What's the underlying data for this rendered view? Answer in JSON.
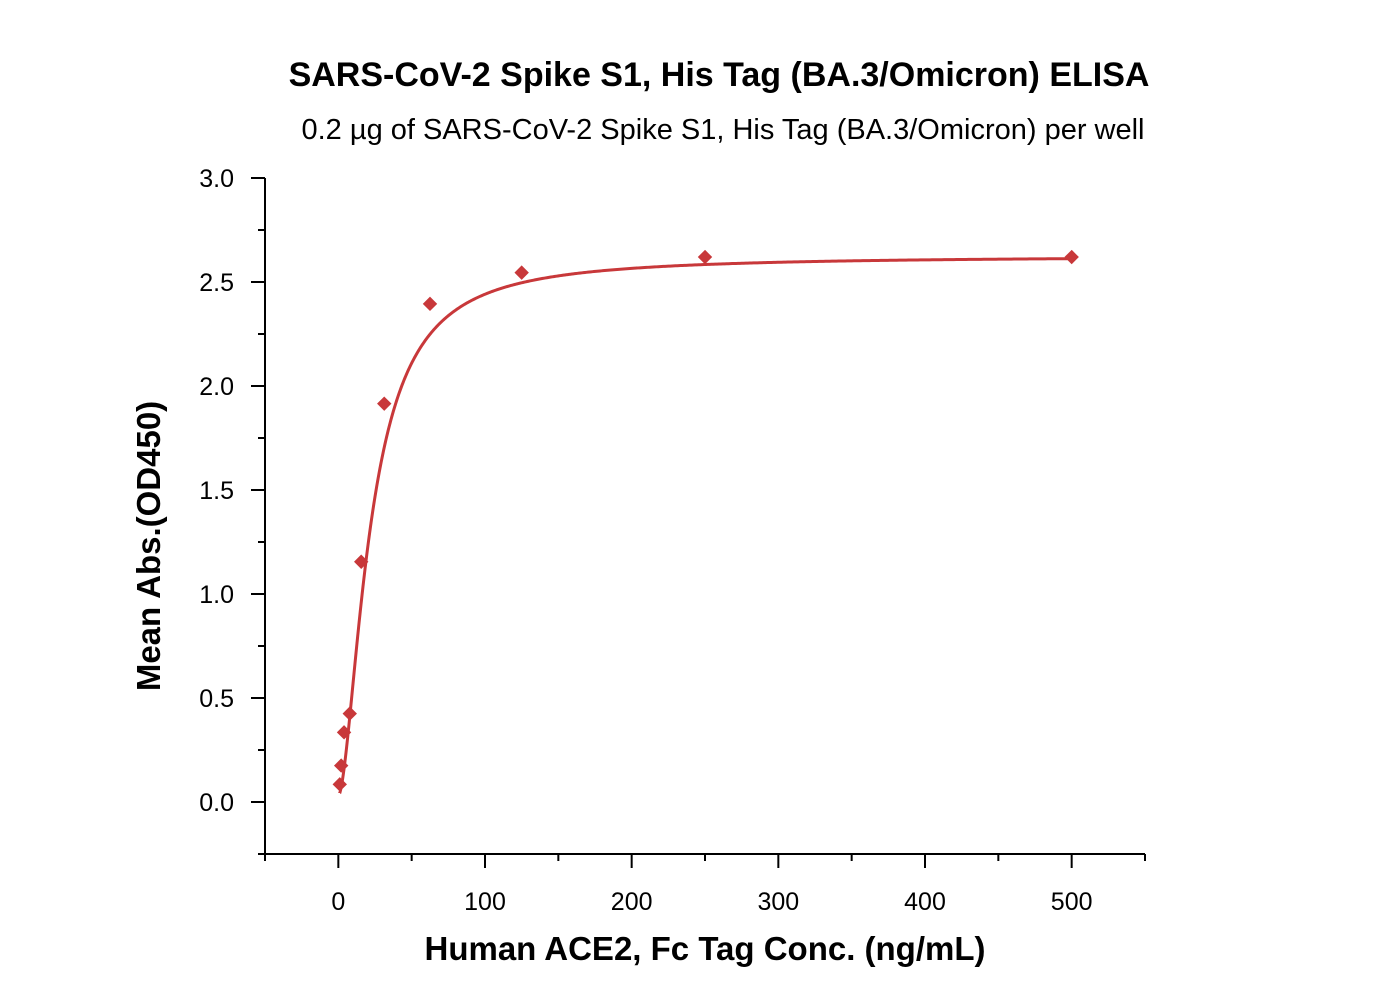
{
  "chart_data": {
    "type": "scatter",
    "title": "SARS-CoV-2 Spike S1, His Tag (BA.3/Omicron) ELISA",
    "subtitle": "0.2 µg of SARS-CoV-2 Spike S1, His Tag (BA.3/Omicron) per well",
    "xlabel": "Human ACE2, Fc Tag Conc. (ng/mL)",
    "ylabel": "Mean Abs.(OD450)",
    "xlim": [
      -50,
      550
    ],
    "ylim": [
      -0.25,
      3.0
    ],
    "x_ticks": [
      0,
      100,
      200,
      300,
      400,
      500
    ],
    "x_tick_labels": [
      "0",
      "100",
      "200",
      "300",
      "400",
      "500"
    ],
    "y_ticks": [
      0.0,
      0.5,
      1.0,
      1.5,
      2.0,
      2.5,
      3.0
    ],
    "y_tick_labels": [
      "0.0",
      "0.5",
      "1.0",
      "1.5",
      "2.0",
      "2.5",
      "3.0"
    ],
    "grid": false,
    "color": "#c8383a",
    "points": [
      {
        "x": 0.98,
        "y": 0.085
      },
      {
        "x": 1.95,
        "y": 0.175
      },
      {
        "x": 3.9,
        "y": 0.335
      },
      {
        "x": 7.8,
        "y": 0.425
      },
      {
        "x": 15.6,
        "y": 1.155
      },
      {
        "x": 31.3,
        "y": 1.915
      },
      {
        "x": 62.5,
        "y": 2.395
      },
      {
        "x": 125,
        "y": 2.545
      },
      {
        "x": 250,
        "y": 2.62
      },
      {
        "x": 500,
        "y": 2.62
      }
    ],
    "fit": {
      "type": "4PL",
      "bottom": 0.03,
      "top": 2.625,
      "ec50": 22,
      "hill": 1.7
    }
  }
}
